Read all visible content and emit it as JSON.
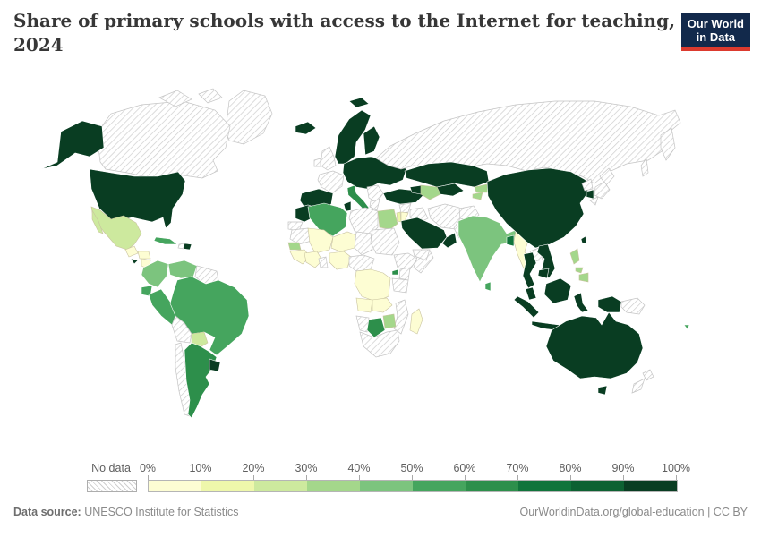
{
  "header": {
    "title_line1": "Share of primary schools with access to the Internet for teaching,",
    "title_line2": "2024",
    "logo": {
      "line1": "Our World",
      "line2": "in Data",
      "bg_color": "#12294b",
      "stripe_color": "#dc3a2e"
    }
  },
  "legend": {
    "no_data_label": "No data",
    "ticks": [
      "0%",
      "10%",
      "20%",
      "30%",
      "40%",
      "50%",
      "60%",
      "70%",
      "80%",
      "90%",
      "100%"
    ]
  },
  "footer": {
    "source_label": "Data source:",
    "source_value": " UNESCO Institute for Statistics",
    "right_text": "OurWorldinData.org/global-education | CC BY"
  },
  "chart_data": {
    "type": "choropleth-map",
    "title": "Share of primary schools with access to the Internet for teaching, 2024",
    "unit": "share of primary schools",
    "color_scale": {
      "bins": [
        "0-10%",
        "10-20%",
        "20-30%",
        "30-40%",
        "40-50%",
        "50-60%",
        "60-70%",
        "70-80%",
        "80-90%",
        "90-100%"
      ],
      "colors": [
        "#fdfdd3",
        "#eef7ab",
        "#cde99e",
        "#a4d78b",
        "#7cc47e",
        "#45a55e",
        "#2d8f4b",
        "#11743b",
        "#0d6132",
        "#093d22"
      ],
      "no_data_style": "white with gray diagonal hatching"
    },
    "regions": [
      {
        "name": "United States",
        "bin": 9
      },
      {
        "name": "Canada",
        "bin": null
      },
      {
        "name": "Greenland",
        "bin": null
      },
      {
        "name": "Mexico",
        "bin": 2
      },
      {
        "name": "Guatemala",
        "bin": 0
      },
      {
        "name": "Honduras",
        "bin": 0
      },
      {
        "name": "El Salvador",
        "bin": 9
      },
      {
        "name": "Nicaragua",
        "bin": 0
      },
      {
        "name": "Costa Rica",
        "bin": 9
      },
      {
        "name": "Cuba",
        "bin": 5
      },
      {
        "name": "Haiti",
        "bin": null
      },
      {
        "name": "Dominican Republic",
        "bin": 9
      },
      {
        "name": "Colombia",
        "bin": 4
      },
      {
        "name": "Venezuela",
        "bin": 4
      },
      {
        "name": "Guyana",
        "bin": null
      },
      {
        "name": "Ecuador",
        "bin": 5
      },
      {
        "name": "Peru",
        "bin": 5
      },
      {
        "name": "Brazil",
        "bin": 5
      },
      {
        "name": "Bolivia",
        "bin": null
      },
      {
        "name": "Paraguay",
        "bin": 2
      },
      {
        "name": "Chile",
        "bin": null
      },
      {
        "name": "Argentina",
        "bin": 6
      },
      {
        "name": "Uruguay",
        "bin": 9
      },
      {
        "name": "Iceland",
        "bin": 9
      },
      {
        "name": "United Kingdom",
        "bin": null
      },
      {
        "name": "Ireland",
        "bin": null
      },
      {
        "name": "Norway",
        "bin": 9
      },
      {
        "name": "Sweden",
        "bin": 9
      },
      {
        "name": "Finland",
        "bin": 9
      },
      {
        "name": "Denmark",
        "bin": 9
      },
      {
        "name": "France",
        "bin": null
      },
      {
        "name": "Spain",
        "bin": 9
      },
      {
        "name": "Portugal",
        "bin": 9
      },
      {
        "name": "Germany",
        "bin": 9
      },
      {
        "name": "Poland",
        "bin": 9
      },
      {
        "name": "Ukraine",
        "bin": 9
      },
      {
        "name": "Romania",
        "bin": 9
      },
      {
        "name": "Italy",
        "bin": 6
      },
      {
        "name": "Balkans",
        "bin": null
      },
      {
        "name": "Greece",
        "bin": null
      },
      {
        "name": "Turkey",
        "bin": 9
      },
      {
        "name": "Azerbaijan",
        "bin": 9
      },
      {
        "name": "Morocco",
        "bin": 9
      },
      {
        "name": "Western Sahara",
        "bin": null
      },
      {
        "name": "Algeria",
        "bin": 5
      },
      {
        "name": "Tunisia",
        "bin": 9
      },
      {
        "name": "Libya",
        "bin": null
      },
      {
        "name": "Egypt",
        "bin": 3
      },
      {
        "name": "Mauritania",
        "bin": null
      },
      {
        "name": "Mali",
        "bin": 0
      },
      {
        "name": "Niger",
        "bin": 0
      },
      {
        "name": "Chad",
        "bin": null
      },
      {
        "name": "Sudan",
        "bin": null
      },
      {
        "name": "Senegal",
        "bin": 3
      },
      {
        "name": "Guinea",
        "bin": 0
      },
      {
        "name": "Burkina Faso",
        "bin": 0
      },
      {
        "name": "Ghana",
        "bin": null
      },
      {
        "name": "Nigeria",
        "bin": 0
      },
      {
        "name": "Cameroon",
        "bin": null
      },
      {
        "name": "Ethiopia",
        "bin": null
      },
      {
        "name": "Somalia",
        "bin": null
      },
      {
        "name": "Uganda",
        "bin": 6
      },
      {
        "name": "Kenya",
        "bin": null
      },
      {
        "name": "Tanzania",
        "bin": null
      },
      {
        "name": "DR Congo",
        "bin": 0
      },
      {
        "name": "Angola",
        "bin": 0
      },
      {
        "name": "Zambia",
        "bin": 0
      },
      {
        "name": "Mozambique",
        "bin": null
      },
      {
        "name": "Zimbabwe",
        "bin": 3
      },
      {
        "name": "Botswana",
        "bin": 6
      },
      {
        "name": "Namibia",
        "bin": null
      },
      {
        "name": "South Africa",
        "bin": null
      },
      {
        "name": "Madagascar",
        "bin": 0
      },
      {
        "name": "Syria",
        "bin": null
      },
      {
        "name": "Israel",
        "bin": 1
      },
      {
        "name": "Jordan",
        "bin": 0
      },
      {
        "name": "Iraq",
        "bin": null
      },
      {
        "name": "Iran",
        "bin": null
      },
      {
        "name": "Saudi Arabia",
        "bin": 9
      },
      {
        "name": "Oman",
        "bin": 9
      },
      {
        "name": "Yemen",
        "bin": null
      },
      {
        "name": "Russia",
        "bin": null
      },
      {
        "name": "Kazakhstan",
        "bin": 9
      },
      {
        "name": "Uzbekistan",
        "bin": 9
      },
      {
        "name": "Turkmenistan",
        "bin": 3
      },
      {
        "name": "Kyrgyzstan",
        "bin": 3
      },
      {
        "name": "Tajikistan",
        "bin": 3
      },
      {
        "name": "Afghanistan",
        "bin": null
      },
      {
        "name": "Pakistan",
        "bin": null
      },
      {
        "name": "India",
        "bin": 4
      },
      {
        "name": "Sri Lanka",
        "bin": 5
      },
      {
        "name": "Bangladesh",
        "bin": 7
      },
      {
        "name": "Myanmar",
        "bin": 0
      },
      {
        "name": "China",
        "bin": 9
      },
      {
        "name": "Mongolia",
        "bin": 9
      },
      {
        "name": "North Korea",
        "bin": null
      },
      {
        "name": "South Korea",
        "bin": 9
      },
      {
        "name": "Japan",
        "bin": null
      },
      {
        "name": "Taiwan",
        "bin": 9
      },
      {
        "name": "Laos",
        "bin": null
      },
      {
        "name": "Thailand",
        "bin": 9
      },
      {
        "name": "Vietnam",
        "bin": 9
      },
      {
        "name": "Cambodia",
        "bin": 9
      },
      {
        "name": "Malaysia",
        "bin": 9
      },
      {
        "name": "Indonesia",
        "bin": 9
      },
      {
        "name": "Philippines",
        "bin": 3
      },
      {
        "name": "Papua New Guinea",
        "bin": null
      },
      {
        "name": "Australia",
        "bin": 9
      },
      {
        "name": "New Zealand",
        "bin": null
      },
      {
        "name": "Fiji",
        "bin": 5
      }
    ]
  }
}
